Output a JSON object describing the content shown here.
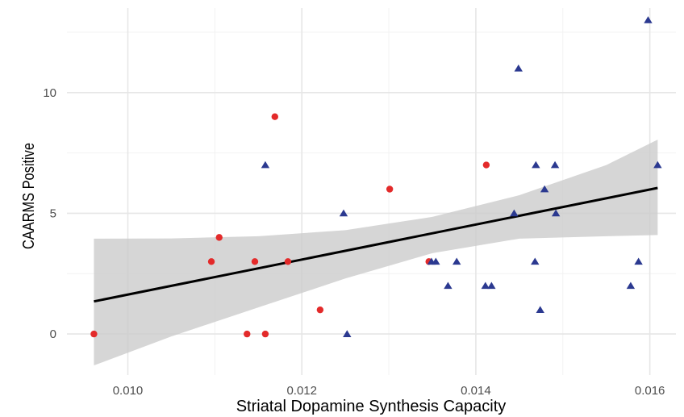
{
  "chart_data": {
    "type": "scatter",
    "title": "",
    "xlabel": "Striatal Dopamine Synthesis Capacity",
    "ylabel": "CAARMS Positive",
    "xlim": [
      0.0093,
      0.0163
    ],
    "ylim": [
      -1.7,
      13.5
    ],
    "x_ticks": [
      0.01,
      0.012,
      0.014,
      0.016
    ],
    "x_tick_labels": [
      "0.010",
      "0.012",
      "0.014",
      "0.016"
    ],
    "y_ticks": [
      0,
      5,
      10
    ],
    "y_tick_labels": [
      "0",
      "5",
      "10"
    ],
    "grid": true,
    "legend": "none",
    "series": [
      {
        "marker": "circle",
        "color": "#e32a2a",
        "points": [
          [
            0.00961,
            0
          ],
          [
            0.01096,
            3
          ],
          [
            0.01105,
            4
          ],
          [
            0.01137,
            0
          ],
          [
            0.01146,
            3
          ],
          [
            0.01158,
            0
          ],
          [
            0.01169,
            9
          ],
          [
            0.01184,
            3
          ],
          [
            0.01221,
            1
          ],
          [
            0.01301,
            6
          ],
          [
            0.01346,
            3
          ],
          [
            0.01412,
            7
          ]
        ]
      },
      {
        "marker": "triangle",
        "color": "#2b3990",
        "points": [
          [
            0.01158,
            7
          ],
          [
            0.01248,
            5
          ],
          [
            0.01252,
            0
          ],
          [
            0.01349,
            3
          ],
          [
            0.01354,
            3
          ],
          [
            0.01368,
            2
          ],
          [
            0.01378,
            3
          ],
          [
            0.01411,
            2
          ],
          [
            0.01418,
            2
          ],
          [
            0.01444,
            5
          ],
          [
            0.01449,
            11
          ],
          [
            0.01468,
            3
          ],
          [
            0.01469,
            7
          ],
          [
            0.01474,
            1
          ],
          [
            0.01479,
            6
          ],
          [
            0.01491,
            7
          ],
          [
            0.01492,
            5
          ],
          [
            0.01578,
            2
          ],
          [
            0.01587,
            3
          ],
          [
            0.01598,
            13
          ],
          [
            0.01609,
            7
          ]
        ]
      }
    ],
    "fit_line": {
      "x": [
        0.00961,
        0.01609
      ],
      "y": [
        1.35,
        6.05
      ],
      "color": "#000000"
    },
    "confidence_band": {
      "x": [
        0.00961,
        0.0105,
        0.0115,
        0.0125,
        0.0135,
        0.0145,
        0.0155,
        0.01609
      ],
      "upper": [
        3.95,
        3.96,
        4.05,
        4.3,
        4.85,
        5.75,
        7.0,
        8.05
      ],
      "lower": [
        -1.3,
        -0.1,
        1.1,
        2.3,
        3.35,
        3.95,
        4.05,
        4.1
      ],
      "color": "#cccccc"
    }
  }
}
